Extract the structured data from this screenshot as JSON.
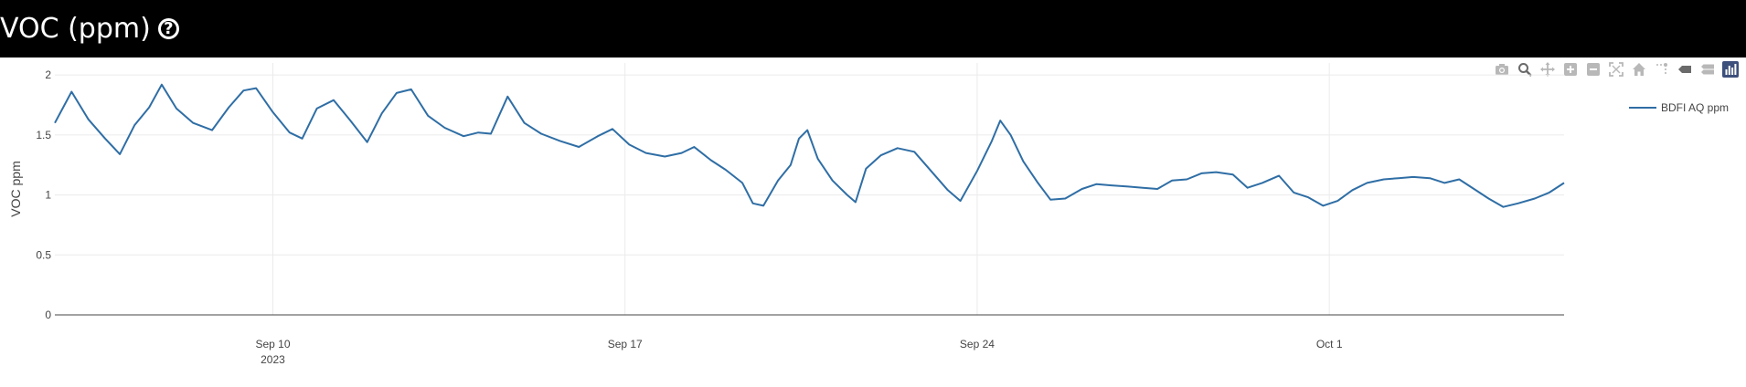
{
  "header": {
    "title": "VOC (ppm)",
    "help_icon": "question-circle-icon"
  },
  "modebar": {
    "buttons": [
      "camera-icon",
      "zoom-icon",
      "pan-icon",
      "zoom-in-icon",
      "zoom-out-icon",
      "autoscale-icon",
      "reset-axes-icon",
      "spike-lines-icon",
      "hover-closest-icon",
      "hover-compare-icon",
      "plotly-logo-icon"
    ]
  },
  "colors": {
    "header_bg": "#000000",
    "line": "#2f6ea5",
    "grid": "#ebebeb",
    "icon_inactive": "#b8b8b8",
    "icon_active": "#6a6a6a",
    "logo": "#3d4f7b"
  },
  "chart_data": {
    "type": "line",
    "ylabel": "VOC ppm",
    "ylim": [
      0,
      2.1
    ],
    "y_ticks": [
      {
        "value": 0,
        "label": "0"
      },
      {
        "value": 0.5,
        "label": "0.5"
      },
      {
        "value": 1,
        "label": "1"
      },
      {
        "value": 1.5,
        "label": "1.5"
      },
      {
        "value": 2,
        "label": "2"
      }
    ],
    "xlim": [
      "2023-09-05T16:00",
      "2023-10-05T16:00"
    ],
    "x_ticks": [
      {
        "value": "2023-09-10",
        "label": "Sep 10",
        "sublabel": "2023"
      },
      {
        "value": "2023-09-17",
        "label": "Sep 17"
      },
      {
        "value": "2023-09-24",
        "label": "Sep 24"
      },
      {
        "value": "2023-10-01",
        "label": "Oct 1"
      }
    ],
    "grid": true,
    "legend": "top-right",
    "series": [
      {
        "name": "BDFI AQ ppm",
        "points": [
          [
            "2023-09-05T16:00",
            1.6
          ],
          [
            "2023-09-06T00:00",
            1.86
          ],
          [
            "2023-09-06T08:00",
            1.63
          ],
          [
            "2023-09-06T16:00",
            1.47
          ],
          [
            "2023-09-06T23:00",
            1.34
          ],
          [
            "2023-09-07T06:00",
            1.58
          ],
          [
            "2023-09-07T13:00",
            1.73
          ],
          [
            "2023-09-07T19:00",
            1.92
          ],
          [
            "2023-09-08T02:00",
            1.72
          ],
          [
            "2023-09-08T10:00",
            1.6
          ],
          [
            "2023-09-08T19:00",
            1.54
          ],
          [
            "2023-09-09T03:00",
            1.73
          ],
          [
            "2023-09-09T10:00",
            1.87
          ],
          [
            "2023-09-09T16:00",
            1.89
          ],
          [
            "2023-09-10T00:00",
            1.69
          ],
          [
            "2023-09-10T08:00",
            1.52
          ],
          [
            "2023-09-10T14:00",
            1.47
          ],
          [
            "2023-09-10T21:00",
            1.72
          ],
          [
            "2023-09-11T05:00",
            1.79
          ],
          [
            "2023-09-11T13:00",
            1.62
          ],
          [
            "2023-09-11T21:00",
            1.44
          ],
          [
            "2023-09-12T04:00",
            1.68
          ],
          [
            "2023-09-12T11:00",
            1.85
          ],
          [
            "2023-09-12T18:00",
            1.88
          ],
          [
            "2023-09-13T02:00",
            1.66
          ],
          [
            "2023-09-13T10:00",
            1.56
          ],
          [
            "2023-09-13T19:00",
            1.49
          ],
          [
            "2023-09-14T02:00",
            1.52
          ],
          [
            "2023-09-14T08:00",
            1.51
          ],
          [
            "2023-09-14T16:00",
            1.82
          ],
          [
            "2023-09-15T00:00",
            1.6
          ],
          [
            "2023-09-15T08:00",
            1.51
          ],
          [
            "2023-09-15T17:00",
            1.45
          ],
          [
            "2023-09-16T02:00",
            1.4
          ],
          [
            "2023-09-16T11:00",
            1.49
          ],
          [
            "2023-09-16T18:00",
            1.55
          ],
          [
            "2023-09-17T02:00",
            1.42
          ],
          [
            "2023-09-17T10:00",
            1.35
          ],
          [
            "2023-09-17T19:00",
            1.32
          ],
          [
            "2023-09-18T03:00",
            1.35
          ],
          [
            "2023-09-18T09:00",
            1.4
          ],
          [
            "2023-09-18T17:00",
            1.29
          ],
          [
            "2023-09-19T00:00",
            1.21
          ],
          [
            "2023-09-19T08:00",
            1.1
          ],
          [
            "2023-09-19T13:00",
            0.93
          ],
          [
            "2023-09-19T18:00",
            0.91
          ],
          [
            "2023-09-20T01:00",
            1.12
          ],
          [
            "2023-09-20T07:00",
            1.25
          ],
          [
            "2023-09-20T11:00",
            1.47
          ],
          [
            "2023-09-20T15:00",
            1.54
          ],
          [
            "2023-09-20T20:00",
            1.3
          ],
          [
            "2023-09-21T03:00",
            1.12
          ],
          [
            "2023-09-21T10:00",
            1.0
          ],
          [
            "2023-09-21T14:00",
            0.94
          ],
          [
            "2023-09-21T19:00",
            1.22
          ],
          [
            "2023-09-22T02:00",
            1.33
          ],
          [
            "2023-09-22T10:00",
            1.39
          ],
          [
            "2023-09-22T18:00",
            1.36
          ],
          [
            "2023-09-23T02:00",
            1.2
          ],
          [
            "2023-09-23T10:00",
            1.04
          ],
          [
            "2023-09-23T16:00",
            0.95
          ],
          [
            "2023-09-24T00:00",
            1.2
          ],
          [
            "2023-09-24T07:00",
            1.45
          ],
          [
            "2023-09-24T11:00",
            1.62
          ],
          [
            "2023-09-24T16:00",
            1.5
          ],
          [
            "2023-09-24T22:00",
            1.28
          ],
          [
            "2023-09-25T05:00",
            1.1
          ],
          [
            "2023-09-25T11:00",
            0.96
          ],
          [
            "2023-09-25T18:00",
            0.97
          ],
          [
            "2023-09-26T02:00",
            1.05
          ],
          [
            "2023-09-26T09:00",
            1.09
          ],
          [
            "2023-09-26T16:00",
            1.08
          ],
          [
            "2023-09-27T00:00",
            1.07
          ],
          [
            "2023-09-27T07:00",
            1.06
          ],
          [
            "2023-09-27T14:00",
            1.05
          ],
          [
            "2023-09-27T21:00",
            1.12
          ],
          [
            "2023-09-28T04:00",
            1.13
          ],
          [
            "2023-09-28T11:00",
            1.18
          ],
          [
            "2023-09-28T18:00",
            1.19
          ],
          [
            "2023-09-29T02:00",
            1.17
          ],
          [
            "2023-09-29T09:00",
            1.06
          ],
          [
            "2023-09-29T16:00",
            1.1
          ],
          [
            "2023-09-30T00:00",
            1.16
          ],
          [
            "2023-09-30T07:00",
            1.02
          ],
          [
            "2023-09-30T14:00",
            0.98
          ],
          [
            "2023-09-30T21:00",
            0.91
          ],
          [
            "2023-10-01T04:00",
            0.95
          ],
          [
            "2023-10-01T11:00",
            1.04
          ],
          [
            "2023-10-01T18:00",
            1.1
          ],
          [
            "2023-10-02T02:00",
            1.13
          ],
          [
            "2023-10-02T09:00",
            1.14
          ],
          [
            "2023-10-02T16:00",
            1.15
          ],
          [
            "2023-10-03T00:00",
            1.14
          ],
          [
            "2023-10-03T07:00",
            1.1
          ],
          [
            "2023-10-03T14:00",
            1.13
          ],
          [
            "2023-10-03T21:00",
            1.05
          ],
          [
            "2023-10-04T04:00",
            0.97
          ],
          [
            "2023-10-04T11:00",
            0.9
          ],
          [
            "2023-10-04T18:00",
            0.93
          ],
          [
            "2023-10-05T02:00",
            0.97
          ],
          [
            "2023-10-05T09:00",
            1.02
          ],
          [
            "2023-10-05T16:00",
            1.1
          ]
        ]
      }
    ]
  }
}
